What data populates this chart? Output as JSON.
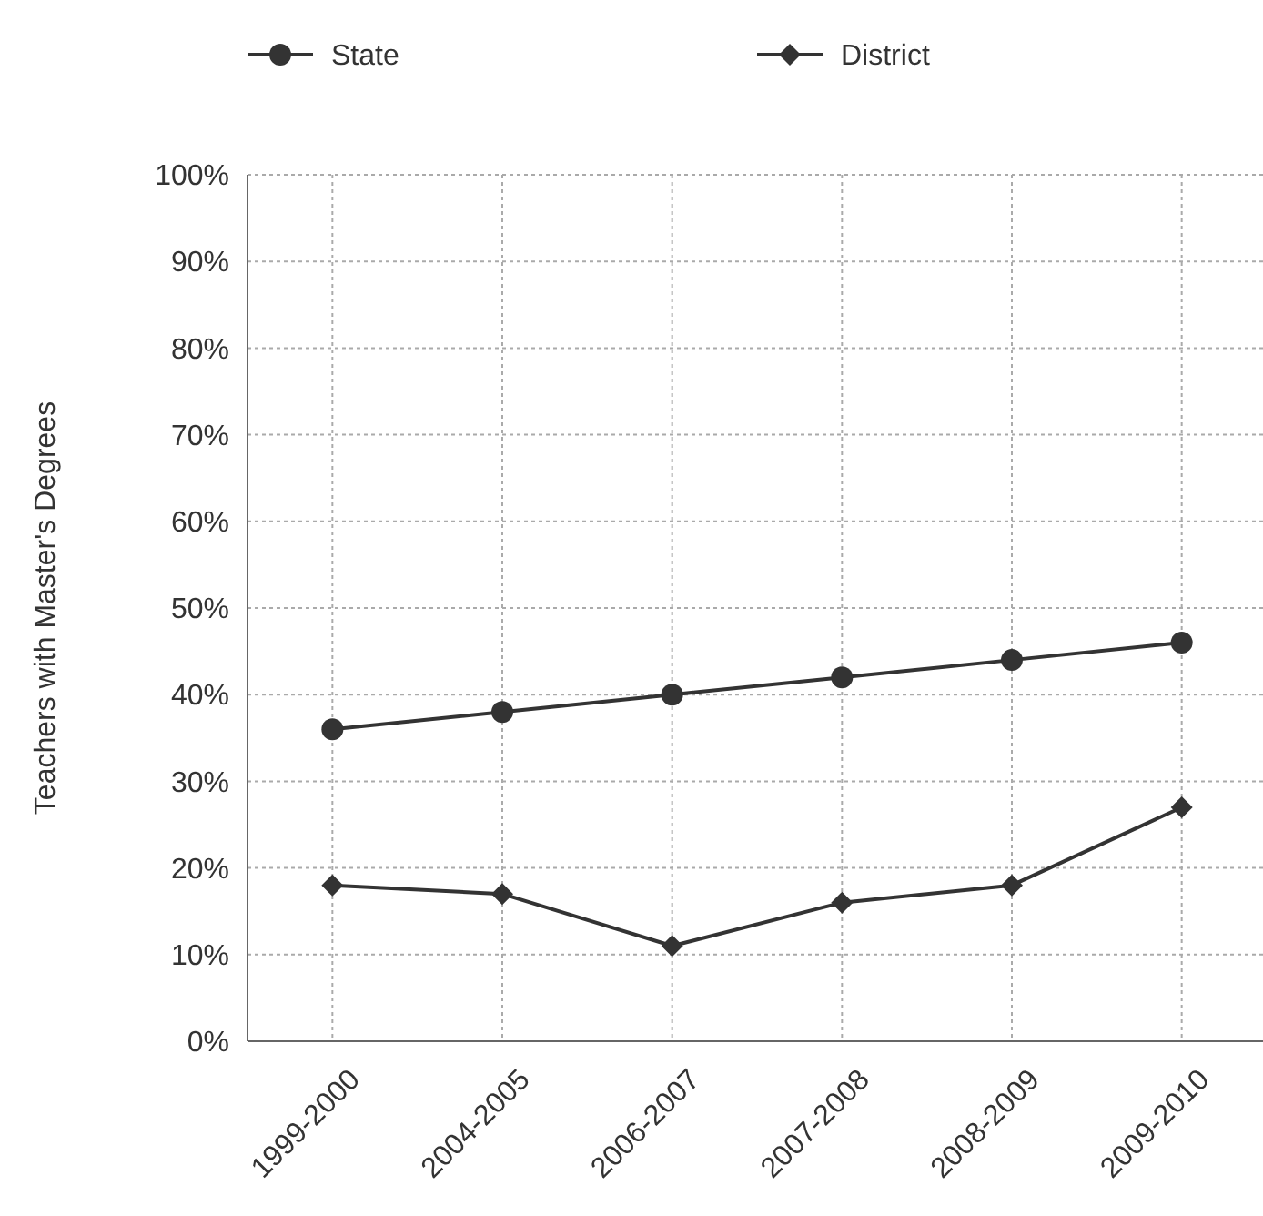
{
  "chart_data": {
    "type": "line",
    "ylabel": "Teachers with Master's Degrees",
    "categories": [
      "1999-2000",
      "2004-2005",
      "2006-2007",
      "2007-2008",
      "2008-2009",
      "2009-2010"
    ],
    "series": [
      {
        "name": "State",
        "color": "#333333",
        "marker": "circle",
        "values": [
          36,
          38,
          40,
          42,
          44,
          46
        ]
      },
      {
        "name": "District",
        "color": "#333333",
        "marker": "diamond",
        "values": [
          18,
          17,
          11,
          16,
          18,
          27
        ]
      }
    ],
    "ylim": [
      0,
      100
    ],
    "yticks": [
      {
        "value": 0,
        "label": "0%"
      },
      {
        "value": 10,
        "label": "10%"
      },
      {
        "value": 20,
        "label": "20%"
      },
      {
        "value": 30,
        "label": "30%"
      },
      {
        "value": 40,
        "label": "40%"
      },
      {
        "value": 50,
        "label": "50%"
      },
      {
        "value": 60,
        "label": "60%"
      },
      {
        "value": 70,
        "label": "70%"
      },
      {
        "value": 80,
        "label": "80%"
      },
      {
        "value": 90,
        "label": "90%"
      },
      {
        "value": 100,
        "label": "100%"
      }
    ],
    "grid": true,
    "legend": "top",
    "line_style": "solid"
  }
}
